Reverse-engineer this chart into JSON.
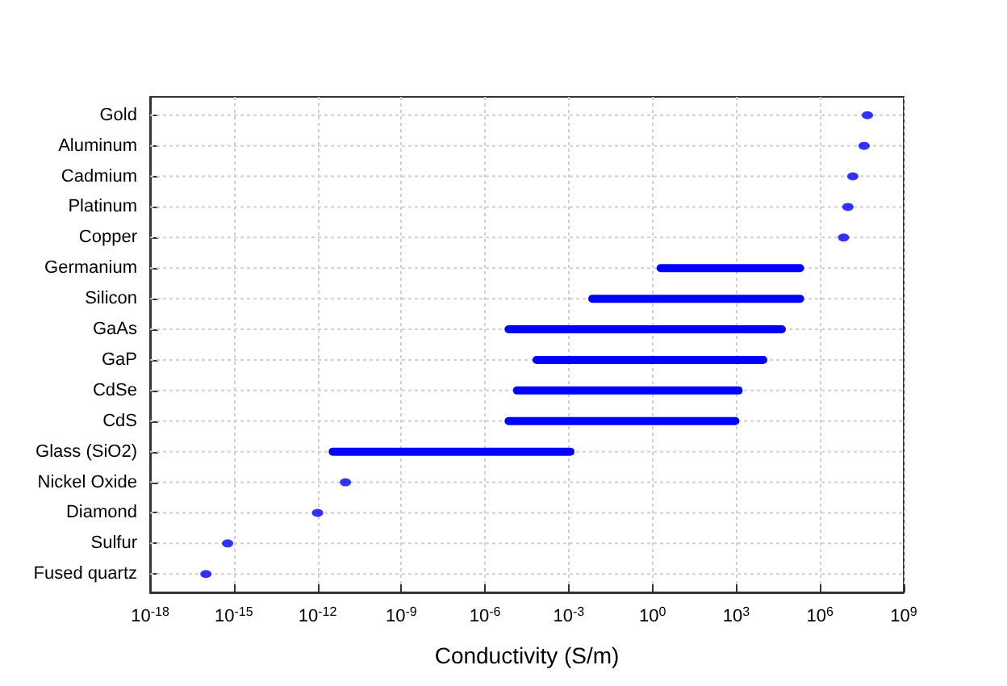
{
  "chart_data": {
    "type": "bar",
    "orientation": "horizontal",
    "xlabel": "Conductivity (S/m)",
    "log": "x",
    "categories": [
      "Gold",
      "Aluminum",
      "Cadmium",
      "Platinum",
      "Copper",
      "Germanium",
      "Silicon",
      "GaAs",
      "GaP",
      "CdSe",
      "CdS",
      "Glass (SiO2)",
      "Nickel Oxide",
      "Diamond",
      "Sulfur",
      "Fused quartz"
    ],
    "series": [
      {
        "color": "#0000ff",
        "base": [
          null,
          null,
          null,
          null,
          null,
          1.4,
          0.005,
          5e-06,
          5e-05,
          1e-05,
          5e-06,
          2.5e-12,
          null,
          null,
          null,
          null
        ],
        "values": [
          null,
          null,
          null,
          null,
          null,
          270000,
          270000,
          60000,
          13000,
          1700,
          1300,
          0.0016,
          null,
          null,
          null,
          null
        ]
      },
      {
        "type": "scatter",
        "color": "#0000ff",
        "marker": "circle",
        "values": [
          50000000.0,
          38000000.0,
          15000000.0,
          10000000.0,
          7000000.0,
          null,
          null,
          null,
          null,
          null,
          null,
          null,
          1e-11,
          1e-12,
          6e-16,
          1e-16
        ]
      }
    ],
    "xlim": [
      1e-18,
      1000000000.0
    ],
    "xticks": [
      {
        "value": 1e-18,
        "label": "10$^{-18}$"
      },
      {
        "value": 1e-15,
        "label": "10$^{-15}$"
      },
      {
        "value": 1e-12,
        "label": "10$^{-12}$"
      },
      {
        "value": 1e-09,
        "label": "10$^{-9}$"
      },
      {
        "value": 1e-06,
        "label": "10$^{-6}$"
      },
      {
        "value": 0.001,
        "label": "10$^{-3}$"
      },
      {
        "value": 1,
        "label": "10$^{0}$"
      },
      {
        "value": 1000,
        "label": "10$^{3}$"
      },
      {
        "value": 1000000.0,
        "label": "10$^{6}$"
      },
      {
        "value": 1000000000.0,
        "label": "10$^{9}$"
      }
    ],
    "grid": true
  }
}
